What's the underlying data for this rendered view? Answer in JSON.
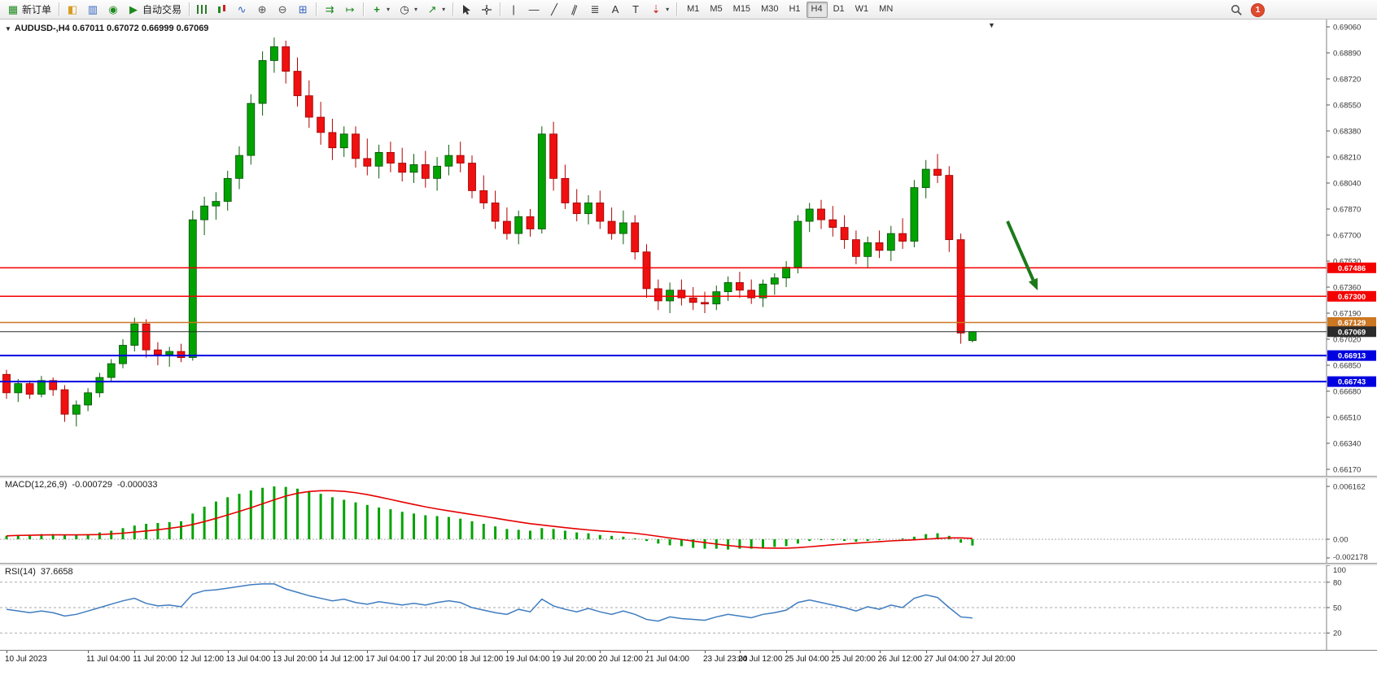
{
  "toolbar": {
    "new_order_label": "新订单",
    "auto_trading_label": "自动交易",
    "timeframes": [
      "M1",
      "M5",
      "M15",
      "M30",
      "H1",
      "H4",
      "D1",
      "W1",
      "MN"
    ],
    "active_timeframe": "H4",
    "notification_count": "1",
    "icons": {
      "new_order": "▦",
      "market_watch": "◧",
      "data_window": "▥",
      "navigator": "◉",
      "auto_play": "▶",
      "line_chart": "∿",
      "zoom_in": "⊕",
      "zoom_out": "⊖",
      "tile_windows": "⊞",
      "auto_scroll": "⇉",
      "chart_shift": "↦",
      "new_chart": "+",
      "period": "◷",
      "indicators": "↗",
      "caret": "▾",
      "vline": "|",
      "hline": "—",
      "trendline": "╱",
      "channel": "∥",
      "fibo": "≣",
      "text_tool": "A",
      "label_tool": "T",
      "arrows_tool": "⇣"
    }
  },
  "chart": {
    "symbol_label": "AUDUSD-,H4  0.67011 0.67072 0.66999 0.67069",
    "collapse_icon": "▼",
    "shift_marker": "▼",
    "price_axis": [
      "0.69060",
      "0.68890",
      "0.68720",
      "0.68550",
      "0.68380",
      "0.68210",
      "0.68040",
      "0.67870",
      "0.67700",
      "0.67530",
      "0.67360",
      "0.67190",
      "0.67020",
      "0.66850",
      "0.66680",
      "0.66510",
      "0.66340",
      "0.66170"
    ],
    "price_range": {
      "top": 0.6906,
      "bottom": 0.6617
    },
    "hlines": [
      {
        "price": 0.67486,
        "label": "0.67486",
        "color": "#f40000",
        "width": 1.5
      },
      {
        "price": 0.673,
        "label": "0.67300",
        "color": "#f40000",
        "width": 1.5
      },
      {
        "price": 0.67129,
        "label": "0.67129",
        "color": "#cc7722",
        "width": 1.5
      },
      {
        "price": 0.67069,
        "label": "0.67069",
        "color": "#2b2b2b",
        "width": 1.0
      },
      {
        "price": 0.66913,
        "label": "0.66913",
        "color": "#0000e0",
        "width": 2.0
      },
      {
        "price": 0.66743,
        "label": "0.66743",
        "color": "#0000e0",
        "width": 2.0
      }
    ],
    "arrow": {
      "from": [
        1238,
        248
      ],
      "to": [
        1275,
        333
      ],
      "color": "#1b7a1b"
    }
  },
  "chart_data": {
    "type": "candlestick",
    "symbol": "AUDUSD",
    "timeframe": "H4",
    "ohlc_display": {
      "open": "0.67011",
      "high": "0.67072",
      "low": "0.66999",
      "close": "0.67069"
    },
    "candles": [
      [
        0.6679,
        0.6682,
        0.6663,
        0.6667
      ],
      [
        0.6667,
        0.6676,
        0.6661,
        0.6673
      ],
      [
        0.6673,
        0.6675,
        0.6663,
        0.6666
      ],
      [
        0.6666,
        0.6678,
        0.6664,
        0.6675
      ],
      [
        0.6675,
        0.6677,
        0.6665,
        0.6669
      ],
      [
        0.6669,
        0.6672,
        0.6648,
        0.6653
      ],
      [
        0.6653,
        0.6662,
        0.6645,
        0.6659
      ],
      [
        0.6659,
        0.667,
        0.6655,
        0.6667
      ],
      [
        0.6667,
        0.668,
        0.6664,
        0.6677
      ],
      [
        0.6677,
        0.6689,
        0.6674,
        0.6686
      ],
      [
        0.6686,
        0.6702,
        0.6683,
        0.6698
      ],
      [
        0.6698,
        0.6716,
        0.6694,
        0.6712
      ],
      [
        0.6712,
        0.6715,
        0.669,
        0.6695
      ],
      [
        0.6695,
        0.67,
        0.6685,
        0.6692
      ],
      [
        0.6692,
        0.6697,
        0.6684,
        0.6694
      ],
      [
        0.6694,
        0.6699,
        0.6687,
        0.669
      ],
      [
        0.669,
        0.6786,
        0.6688,
        0.678
      ],
      [
        0.678,
        0.6795,
        0.677,
        0.6789
      ],
      [
        0.6789,
        0.6798,
        0.678,
        0.6792
      ],
      [
        0.6792,
        0.6812,
        0.6786,
        0.6807
      ],
      [
        0.6807,
        0.6828,
        0.68,
        0.6822
      ],
      [
        0.6822,
        0.6862,
        0.6816,
        0.6856
      ],
      [
        0.6856,
        0.689,
        0.6848,
        0.6884
      ],
      [
        0.6884,
        0.6899,
        0.6876,
        0.6893
      ],
      [
        0.6893,
        0.6897,
        0.6869,
        0.6877
      ],
      [
        0.6877,
        0.6886,
        0.6854,
        0.6861
      ],
      [
        0.6861,
        0.6871,
        0.684,
        0.6847
      ],
      [
        0.6847,
        0.6857,
        0.6829,
        0.6837
      ],
      [
        0.6837,
        0.6846,
        0.6819,
        0.6827
      ],
      [
        0.6827,
        0.6841,
        0.6821,
        0.6836
      ],
      [
        0.6836,
        0.6841,
        0.6814,
        0.682
      ],
      [
        0.682,
        0.6833,
        0.6809,
        0.6815
      ],
      [
        0.6815,
        0.6829,
        0.6807,
        0.6824
      ],
      [
        0.6824,
        0.6831,
        0.6811,
        0.6817
      ],
      [
        0.6817,
        0.6827,
        0.6805,
        0.6811
      ],
      [
        0.6811,
        0.6823,
        0.6804,
        0.6816
      ],
      [
        0.6816,
        0.6825,
        0.6801,
        0.6807
      ],
      [
        0.6807,
        0.6821,
        0.6799,
        0.6815
      ],
      [
        0.6815,
        0.6829,
        0.6809,
        0.6822
      ],
      [
        0.6822,
        0.6831,
        0.6811,
        0.6817
      ],
      [
        0.6817,
        0.6822,
        0.6794,
        0.6799
      ],
      [
        0.6799,
        0.6809,
        0.6787,
        0.6791
      ],
      [
        0.6791,
        0.6799,
        0.6774,
        0.6779
      ],
      [
        0.6779,
        0.6788,
        0.6767,
        0.6771
      ],
      [
        0.6771,
        0.6786,
        0.6764,
        0.6782
      ],
      [
        0.6782,
        0.6787,
        0.6769,
        0.6774
      ],
      [
        0.6774,
        0.6841,
        0.6771,
        0.6836
      ],
      [
        0.6836,
        0.6844,
        0.6799,
        0.6807
      ],
      [
        0.6807,
        0.6816,
        0.6787,
        0.6791
      ],
      [
        0.6791,
        0.68,
        0.6779,
        0.6784
      ],
      [
        0.6784,
        0.6796,
        0.6777,
        0.6791
      ],
      [
        0.6791,
        0.6799,
        0.6774,
        0.6779
      ],
      [
        0.6779,
        0.6788,
        0.6767,
        0.6771
      ],
      [
        0.6771,
        0.6786,
        0.6764,
        0.6778
      ],
      [
        0.6778,
        0.6783,
        0.6754,
        0.6759
      ],
      [
        0.6759,
        0.6764,
        0.6729,
        0.6735
      ],
      [
        0.6735,
        0.6741,
        0.6721,
        0.6727
      ],
      [
        0.6727,
        0.6739,
        0.6719,
        0.6734
      ],
      [
        0.6734,
        0.6741,
        0.6724,
        0.6729
      ],
      [
        0.6729,
        0.6736,
        0.6721,
        0.6726
      ],
      [
        0.6726,
        0.6733,
        0.6719,
        0.6725
      ],
      [
        0.6725,
        0.6737,
        0.6721,
        0.6733
      ],
      [
        0.6733,
        0.6743,
        0.6727,
        0.6739
      ],
      [
        0.6739,
        0.6746,
        0.6729,
        0.6734
      ],
      [
        0.6734,
        0.6741,
        0.6725,
        0.6729
      ],
      [
        0.6729,
        0.6741,
        0.6723,
        0.6738
      ],
      [
        0.6738,
        0.6745,
        0.6731,
        0.6742
      ],
      [
        0.6742,
        0.6753,
        0.6736,
        0.6749
      ],
      [
        0.6749,
        0.6783,
        0.6745,
        0.6779
      ],
      [
        0.6779,
        0.6791,
        0.6772,
        0.6787
      ],
      [
        0.6787,
        0.6793,
        0.6774,
        0.678
      ],
      [
        0.678,
        0.6789,
        0.6769,
        0.6775
      ],
      [
        0.6775,
        0.6783,
        0.6761,
        0.6767
      ],
      [
        0.6767,
        0.6773,
        0.6751,
        0.6756
      ],
      [
        0.6756,
        0.6769,
        0.6749,
        0.6765
      ],
      [
        0.6765,
        0.6773,
        0.6755,
        0.676
      ],
      [
        0.676,
        0.6776,
        0.6753,
        0.6771
      ],
      [
        0.6771,
        0.6781,
        0.6761,
        0.6766
      ],
      [
        0.6766,
        0.6806,
        0.6762,
        0.6801
      ],
      [
        0.6801,
        0.6819,
        0.6794,
        0.6813
      ],
      [
        0.6813,
        0.6823,
        0.6804,
        0.6809
      ],
      [
        0.6809,
        0.6815,
        0.6759,
        0.6767
      ],
      [
        0.6767,
        0.6771,
        0.6699,
        0.6706
      ],
      [
        0.67011,
        0.67072,
        0.66999,
        0.67069
      ]
    ],
    "time_labels": [
      [
        "10 Jul 2023",
        0
      ],
      [
        "11 Jul 04:00",
        7
      ],
      [
        "11 Jul 20:00",
        11
      ],
      [
        "12 Jul 12:00",
        15
      ],
      [
        "13 Jul 04:00",
        19
      ],
      [
        "13 Jul 20:00",
        23
      ],
      [
        "14 Jul 12:00",
        27
      ],
      [
        "17 Jul 04:00",
        31
      ],
      [
        "17 Jul 20:00",
        35
      ],
      [
        "18 Jul 12:00",
        39
      ],
      [
        "19 Jul 04:00",
        43
      ],
      [
        "19 Jul 20:00",
        47
      ],
      [
        "20 Jul 12:00",
        51
      ],
      [
        "21 Jul 04:00",
        55
      ],
      [
        "23 Jul 23:00",
        60
      ],
      [
        "24 Jul 12:00",
        63
      ],
      [
        "25 Jul 04:00",
        67
      ],
      [
        "25 Jul 20:00",
        71
      ],
      [
        "26 Jul 12:00",
        75
      ],
      [
        "27 Jul 04:00",
        79
      ],
      [
        "27 Jul 20:00",
        83
      ]
    ],
    "macd": {
      "label": "MACD(12,26,9)",
      "main_value": "-0.000729",
      "signal_value": "-0.000033",
      "scale": [
        "0.006162",
        "0.00",
        "-0.002178"
      ],
      "max": 0.006162,
      "min": -0.002178,
      "histogram": [
        0.0004,
        0.0005,
        0.0005,
        0.0006,
        0.0006,
        0.0005,
        0.0005,
        0.0006,
        0.0008,
        0.001,
        0.0013,
        0.0016,
        0.0018,
        0.0019,
        0.002,
        0.0021,
        0.003,
        0.0038,
        0.0044,
        0.0049,
        0.0053,
        0.0057,
        0.006,
        0.00616,
        0.0061,
        0.0059,
        0.0056,
        0.0053,
        0.0049,
        0.0046,
        0.0043,
        0.004,
        0.0037,
        0.0035,
        0.0032,
        0.003,
        0.0028,
        0.0027,
        0.0026,
        0.0024,
        0.0021,
        0.0018,
        0.0015,
        0.0012,
        0.0011,
        0.001,
        0.0013,
        0.0012,
        0.001,
        0.0008,
        0.0007,
        0.0005,
        0.0004,
        0.0003,
        0.0001,
        -0.0002,
        -0.0005,
        -0.0007,
        -0.0008,
        -0.001,
        -0.0011,
        -0.0011,
        -0.0012,
        -0.0011,
        -0.0011,
        -0.001,
        -0.0009,
        -0.0008,
        -0.0005,
        -0.0002,
        -0.0001,
        -0.0001,
        -0.0002,
        -0.0003,
        -0.0002,
        -0.0001,
        0.0,
        0.0001,
        0.0003,
        0.0006,
        0.0007,
        0.0004,
        -0.0004,
        -0.000729
      ]
    },
    "rsi": {
      "label": "RSI(14)",
      "value": "37.6658",
      "levels": [
        80,
        50,
        20
      ],
      "scale_labels": [
        "100",
        "80",
        "50",
        "20"
      ],
      "series": [
        48,
        46,
        44,
        46,
        44,
        40,
        42,
        46,
        50,
        54,
        58,
        61,
        55,
        52,
        53,
        51,
        66,
        70,
        71,
        73,
        75,
        77,
        78,
        78,
        72,
        68,
        64,
        61,
        58,
        60,
        56,
        54,
        57,
        55,
        53,
        55,
        53,
        56,
        58,
        56,
        50,
        47,
        44,
        42,
        48,
        45,
        60,
        52,
        48,
        45,
        49,
        45,
        42,
        46,
        42,
        36,
        34,
        39,
        37,
        36,
        35,
        39,
        42,
        40,
        38,
        42,
        44,
        47,
        56,
        59,
        56,
        53,
        50,
        46,
        51,
        48,
        53,
        50,
        61,
        65,
        62,
        50,
        39,
        37.7
      ]
    }
  }
}
